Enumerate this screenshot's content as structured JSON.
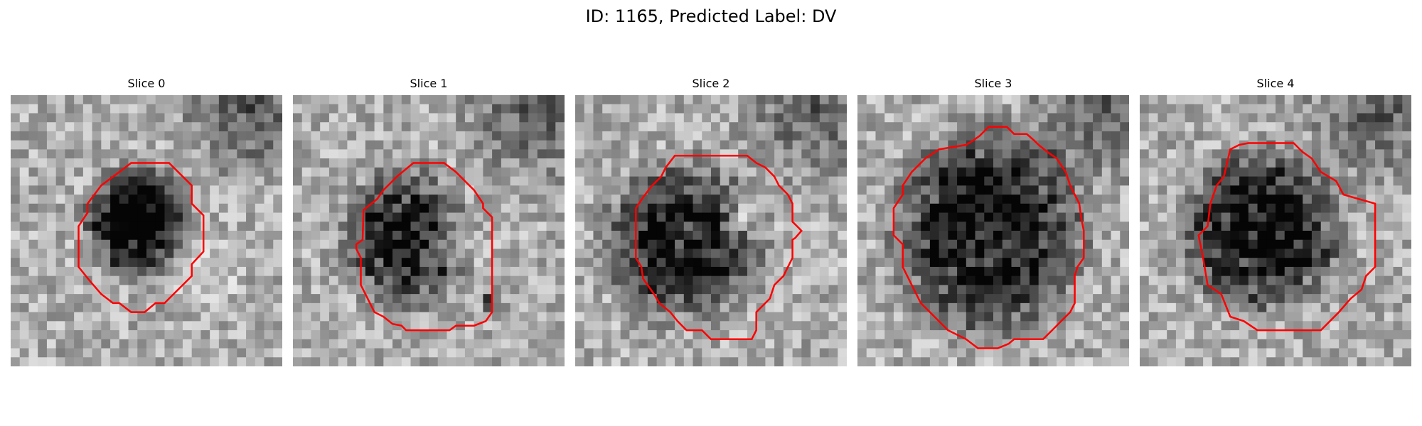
{
  "figure": {
    "title": "ID: 1165, Predicted Label: DV"
  },
  "panels": [
    {
      "title": "Slice 0",
      "contour_color": "#ff0000",
      "seed": 11
    },
    {
      "title": "Slice 1",
      "contour_color": "#ff0000",
      "seed": 23
    },
    {
      "title": "Slice 2",
      "contour_color": "#ff0000",
      "seed": 37
    },
    {
      "title": "Slice 3",
      "contour_color": "#ff0000",
      "seed": 41
    },
    {
      "title": "Slice 4",
      "contour_color": "#ff0000",
      "seed": 59
    }
  ]
}
